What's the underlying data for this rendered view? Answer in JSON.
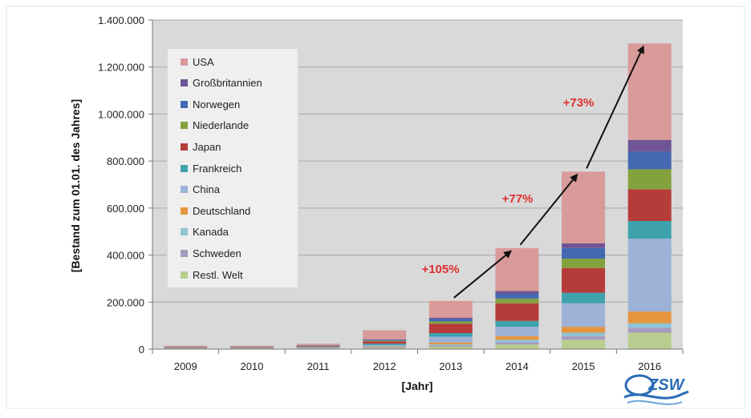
{
  "chart_data": {
    "type": "bar",
    "stacked": true,
    "categories": [
      "2009",
      "2010",
      "2011",
      "2012",
      "2013",
      "2014",
      "2015",
      "2016"
    ],
    "xlabel": "[Jahr]",
    "ylabel": "[Bestand zum 01.01. des Jahres]",
    "ylim": [
      0,
      1400000
    ],
    "yticks": [
      "0",
      "200.000",
      "400.000",
      "600.000",
      "800.000",
      "1.000.000",
      "1.200.000",
      "1.400.000"
    ],
    "ytick_values": [
      0,
      200000,
      400000,
      600000,
      800000,
      1000000,
      1200000,
      1400000
    ],
    "grid": true,
    "legend_position": "top-left",
    "series": [
      {
        "name": "Restl. Welt",
        "color": "#b8cd8f",
        "values": [
          1000,
          1000,
          1000,
          3000,
          10000,
          20000,
          40000,
          70000
        ]
      },
      {
        "name": "Schweden",
        "color": "#a89bc0",
        "values": [
          500,
          500,
          1000,
          2000,
          5000,
          10000,
          15000,
          20000
        ]
      },
      {
        "name": "Kanada",
        "color": "#8fc3d6",
        "values": [
          500,
          500,
          1000,
          2000,
          5000,
          10000,
          15000,
          20000
        ]
      },
      {
        "name": "Deutschland",
        "color": "#e5953f",
        "values": [
          1000,
          1000,
          1500,
          3000,
          8000,
          15000,
          25000,
          50000
        ]
      },
      {
        "name": "China",
        "color": "#9db2d6",
        "values": [
          2000,
          2000,
          3000,
          7000,
          25000,
          40000,
          100000,
          310000
        ]
      },
      {
        "name": "Frankreich",
        "color": "#3ea2ad",
        "values": [
          1000,
          1000,
          2000,
          6000,
          15000,
          25000,
          45000,
          75000
        ]
      },
      {
        "name": "Japan",
        "color": "#b63c3a",
        "values": [
          2000,
          2000,
          3000,
          10000,
          40000,
          75000,
          105000,
          135000
        ]
      },
      {
        "name": "Niederlande",
        "color": "#83a23e",
        "values": [
          1000,
          1000,
          1500,
          3000,
          10000,
          20000,
          40000,
          85000
        ]
      },
      {
        "name": "Norwegen",
        "color": "#4469b1",
        "values": [
          1000,
          1000,
          1500,
          4000,
          10000,
          20000,
          45000,
          75000
        ]
      },
      {
        "name": "Großbritannien",
        "color": "#6f5596",
        "values": [
          500,
          500,
          1000,
          2000,
          6000,
          12000,
          20000,
          50000
        ]
      },
      {
        "name": "USA",
        "color": "#d99a9a",
        "values": [
          4500,
          4500,
          6500,
          38000,
          71000,
          183000,
          305000,
          410000
        ]
      }
    ],
    "annotations": [
      {
        "text": "+105%",
        "color": "#e03030"
      },
      {
        "text": "+77%",
        "color": "#e03030"
      },
      {
        "text": "+73%",
        "color": "#e03030"
      }
    ]
  },
  "logo": {
    "text": "ZSW",
    "color": "#2b6cb5"
  }
}
